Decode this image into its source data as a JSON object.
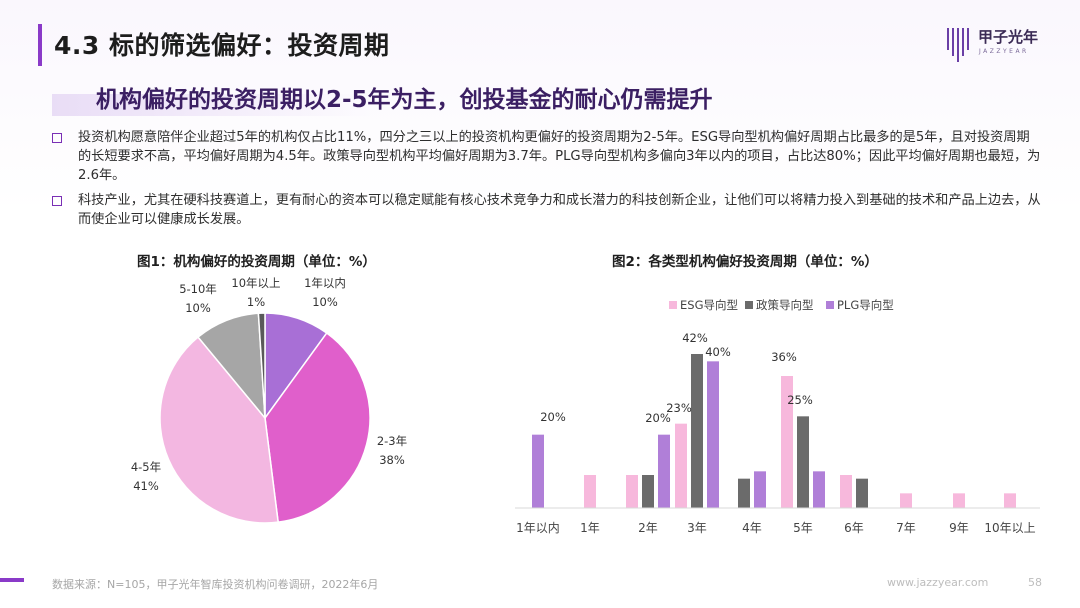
{
  "header": {
    "title": "4.3 标的筛选偏好：投资周期",
    "logo_text": "甲子光年",
    "logo_sub": "JAZZYEAR"
  },
  "subtitle": "机构偏好的投资周期以2-5年为主，创投基金的耐心仍需提升",
  "bullets": [
    "投资机构愿意陪伴企业超过5年的机构仅占比11%，四分之三以上的投资机构更偏好的投资周期为2-5年。ESG导向型机构偏好周期占比最多的是5年，且对投资周期的长短要求不高，平均偏好周期为4.5年。政策导向型机构平均偏好周期为3.7年。PLG导向型机构多偏向3年以内的项目，占比达80%；因此平均偏好周期也最短，为2.6年。",
    "科技产业，尤其在硬科技赛道上，更有耐心的资本可以稳定赋能有核心技术竞争力和成长潜力的科技创新企业，让他们可以将精力投入到基础的技术和产品上边去，从而使企业可以健康成长发展。"
  ],
  "figure1": {
    "title": "图1：机构偏好的投资周期（单位：%）"
  },
  "figure2": {
    "title": "图2：各类型机构偏好投资周期（单位：%）"
  },
  "footer": {
    "source": "数据来源：N=105，甲子光年智库投资机构问卷调研，2022年6月",
    "website": "www.jazzyear.com",
    "page": "58"
  },
  "chart_data": [
    {
      "type": "pie",
      "title": "图1：机构偏好的投资周期（单位：%）",
      "categories": [
        "1年以内",
        "2-3年",
        "4-5年",
        "5-10年",
        "10年以上"
      ],
      "values": [
        10,
        38,
        41,
        10,
        1
      ],
      "labels": [
        "10%",
        "38%",
        "41%",
        "10%",
        "1%"
      ],
      "colors": [
        "#a86fd6",
        "#e05fcb",
        "#f3b7e1",
        "#a6a6a6",
        "#595959"
      ]
    },
    {
      "type": "bar",
      "title": "图2：各类型机构偏好投资周期（单位：%）",
      "categories": [
        "1年以内",
        "1年",
        "2年",
        "3年",
        "4年",
        "5年",
        "6年",
        "7年",
        "9年",
        "10年以上"
      ],
      "series": [
        {
          "name": "ESG导向型",
          "color": "#f7b8dc",
          "values": [
            0,
            9,
            9,
            23,
            0,
            36,
            9,
            4,
            4,
            4
          ]
        },
        {
          "name": "政策导向型",
          "color": "#6b6b6b",
          "values": [
            0,
            0,
            9,
            42,
            8,
            25,
            8,
            0,
            0,
            0
          ]
        },
        {
          "name": "PLG导向型",
          "color": "#b07fd8",
          "values": [
            20,
            0,
            20,
            40,
            10,
            10,
            0,
            0,
            0,
            0
          ]
        }
      ],
      "data_labels": [
        "20%",
        "23%",
        "42%",
        "20%",
        "40%",
        "36%",
        "25%"
      ],
      "legend": "top-center",
      "ylim": [
        0,
        45
      ]
    }
  ]
}
